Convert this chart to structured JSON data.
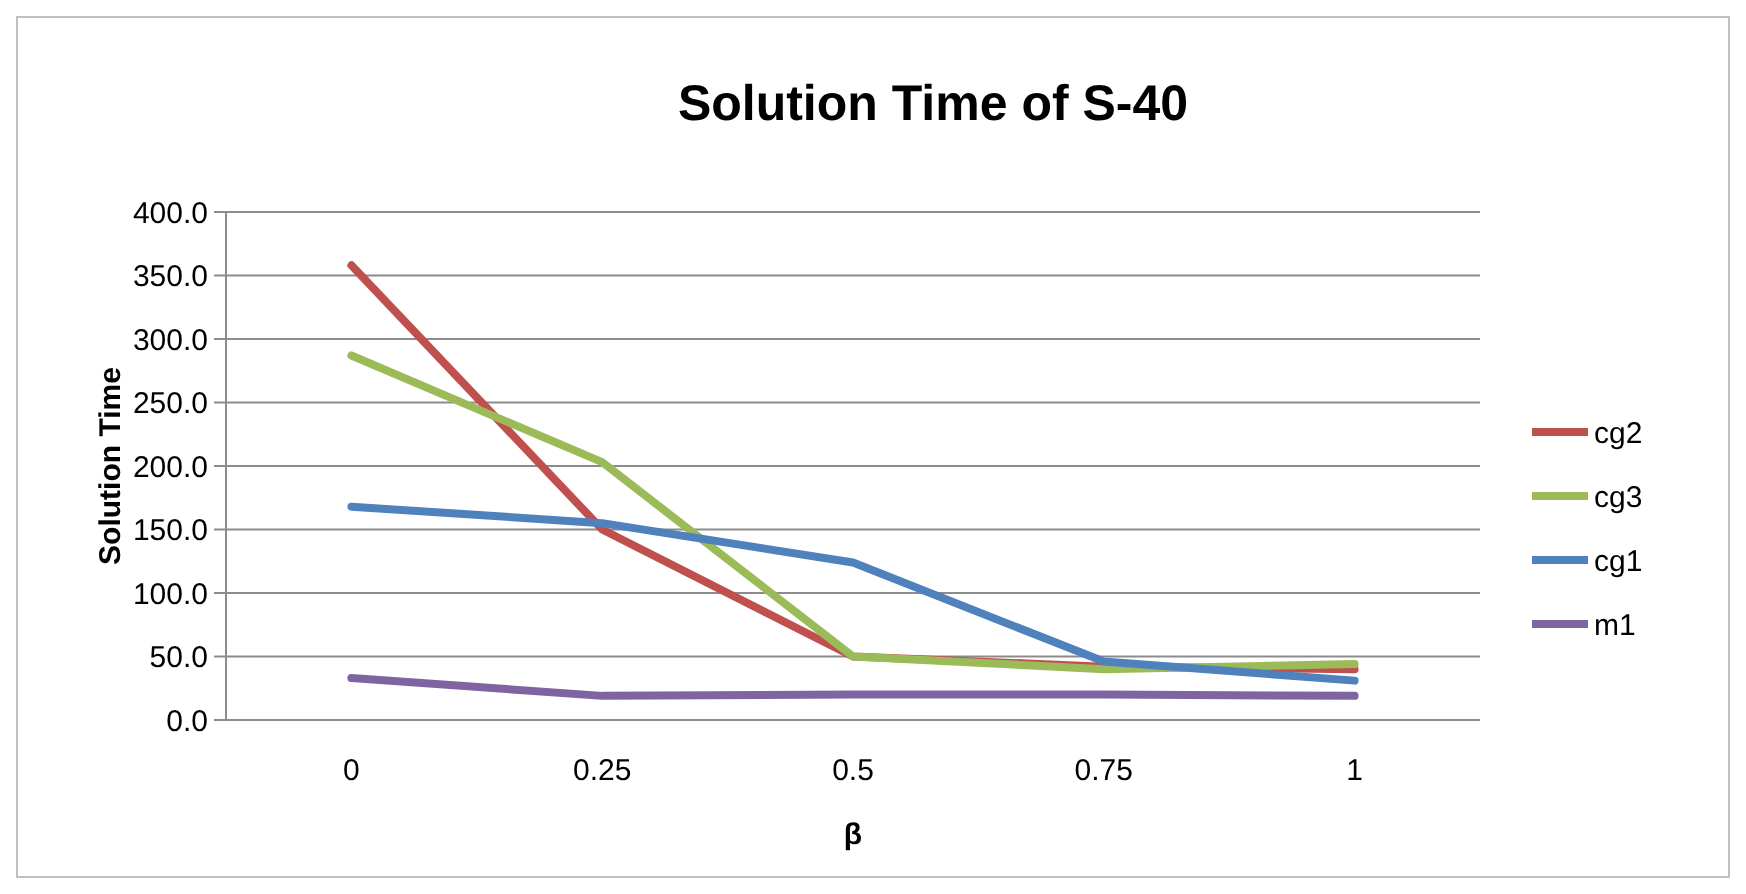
{
  "chart_data": {
    "type": "line",
    "title": "Solution Time of S-40",
    "xlabel": "β",
    "ylabel": "Solution Time",
    "categories": [
      "0",
      "0.25",
      "0.5",
      "0.75",
      "1"
    ],
    "series": [
      {
        "name": "cg2",
        "color": "#c0504d",
        "values": [
          358,
          150,
          50,
          42,
          40
        ]
      },
      {
        "name": "cg3",
        "color": "#9bbb59",
        "values": [
          287,
          203,
          50,
          40,
          44
        ]
      },
      {
        "name": "cg1",
        "color": "#4f81bd",
        "values": [
          168,
          155,
          124,
          46,
          31
        ]
      },
      {
        "name": "m1",
        "color": "#8064a2",
        "values": [
          33,
          19,
          20,
          20,
          19
        ]
      }
    ],
    "ylim": [
      0,
      400
    ],
    "yticks": [
      {
        "value": 0,
        "label": "0.0"
      },
      {
        "value": 50,
        "label": "50.0"
      },
      {
        "value": 100,
        "label": "100.0"
      },
      {
        "value": 150,
        "label": "150.0"
      },
      {
        "value": 200,
        "label": "200.0"
      },
      {
        "value": 250,
        "label": "250.0"
      },
      {
        "value": 300,
        "label": "300.0"
      },
      {
        "value": 350,
        "label": "350.0"
      },
      {
        "value": 400,
        "label": "400.0"
      }
    ],
    "grid": "y",
    "legend": "right",
    "marker": "none",
    "line_style": "solid"
  }
}
